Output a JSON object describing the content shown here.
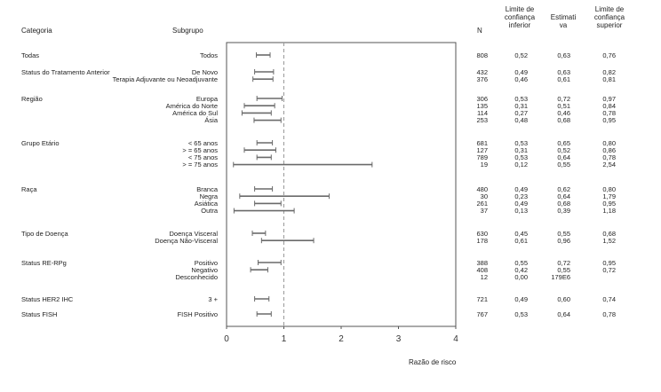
{
  "headers": {
    "categoria": "Categoria",
    "subgrupo": "Subgrupo",
    "n": "N",
    "lower_line1": "Limite de",
    "lower_line2": "confiança",
    "lower_line3": "inferior",
    "est_line1": "Estimati",
    "est_line2": "va",
    "upper_line1": "Limite de",
    "upper_line2": "confiança",
    "upper_line3": "superior"
  },
  "chart_data": {
    "type": "forest",
    "xlabel": "Razão de risco",
    "xlim": [
      0,
      4
    ],
    "xticks": [
      "0",
      "1",
      "2",
      "3",
      "4"
    ],
    "reference_line": 1,
    "groups": [
      {
        "category": "Todas",
        "rows": [
          {
            "subgroup": "Todos",
            "n": "808",
            "lower": "0,52",
            "estimate": "0,63",
            "upper": "0,76",
            "lo": 0.52,
            "hi": 0.76
          }
        ]
      },
      {
        "category": "Status do Tratamento Anterior",
        "rows": [
          {
            "subgroup": "De Novo",
            "n": "432",
            "lower": "0,49",
            "estimate": "0,63",
            "upper": "0,82",
            "lo": 0.49,
            "hi": 0.82
          },
          {
            "subgroup": "Terapia Adjuvante ou Neoadjuvante",
            "n": "376",
            "lower": "0,46",
            "estimate": "0,61",
            "upper": "0,81",
            "lo": 0.46,
            "hi": 0.81
          }
        ]
      },
      {
        "category": "Região",
        "rows": [
          {
            "subgroup": "Europa",
            "n": "306",
            "lower": "0,53",
            "estimate": "0,72",
            "upper": "0,97",
            "lo": 0.53,
            "hi": 0.97
          },
          {
            "subgroup": "América do Norte",
            "n": "135",
            "lower": "0,31",
            "estimate": "0,51",
            "upper": "0,84",
            "lo": 0.31,
            "hi": 0.84
          },
          {
            "subgroup": "América do Sul",
            "n": "114",
            "lower": "0,27",
            "estimate": "0,46",
            "upper": "0,78",
            "lo": 0.27,
            "hi": 0.78
          },
          {
            "subgroup": "Ásia",
            "n": "253",
            "lower": "0,48",
            "estimate": "0,68",
            "upper": "0,95",
            "lo": 0.48,
            "hi": 0.95
          }
        ]
      },
      {
        "category": "Grupo Etário",
        "rows": [
          {
            "subgroup": "< 65 anos",
            "n": "681",
            "lower": "0,53",
            "estimate": "0,65",
            "upper": "0,80",
            "lo": 0.53,
            "hi": 0.8
          },
          {
            "subgroup": "> = 65 anos",
            "n": "127",
            "lower": "0,31",
            "estimate": "0,52",
            "upper": "0,86",
            "lo": 0.31,
            "hi": 0.86
          },
          {
            "subgroup": "< 75 anos",
            "n": "789",
            "lower": "0,53",
            "estimate": "0,64",
            "upper": "0,78",
            "lo": 0.53,
            "hi": 0.78
          },
          {
            "subgroup": "> = 75 anos",
            "n": "19",
            "lower": "0,12",
            "estimate": "0,55",
            "upper": "2,54",
            "lo": 0.12,
            "hi": 2.54
          }
        ]
      },
      {
        "category": "Raça",
        "rows": [
          {
            "subgroup": "Branca",
            "n": "480",
            "lower": "0,49",
            "estimate": "0,62",
            "upper": "0,80",
            "lo": 0.49,
            "hi": 0.8
          },
          {
            "subgroup": "Negra",
            "n": "30",
            "lower": "0,23",
            "estimate": "0,64",
            "upper": "1,79",
            "lo": 0.23,
            "hi": 1.79
          },
          {
            "subgroup": "Asiática",
            "n": "261",
            "lower": "0,49",
            "estimate": "0,68",
            "upper": "0,95",
            "lo": 0.49,
            "hi": 0.95
          },
          {
            "subgroup": "Outra",
            "n": "37",
            "lower": "0,13",
            "estimate": "0,39",
            "upper": "1,18",
            "lo": 0.13,
            "hi": 1.18
          }
        ]
      },
      {
        "category": "Tipo de Doença",
        "rows": [
          {
            "subgroup": "Doença Visceral",
            "n": "630",
            "lower": "0,45",
            "estimate": "0,55",
            "upper": "0,68",
            "lo": 0.45,
            "hi": 0.68
          },
          {
            "subgroup": "Doença Não-Visceral",
            "n": "178",
            "lower": "0,61",
            "estimate": "0,96",
            "upper": "1,52",
            "lo": 0.61,
            "hi": 1.52
          }
        ]
      },
      {
        "category": "Status RE-RPg",
        "rows": [
          {
            "subgroup": "Positivo",
            "n": "388",
            "lower": "0,55",
            "estimate": "0,72",
            "upper": "0,95",
            "lo": 0.55,
            "hi": 0.95
          },
          {
            "subgroup": "Negativo",
            "n": "408",
            "lower": "0,42",
            "estimate": "0,55",
            "upper": "0,72",
            "lo": 0.42,
            "hi": 0.72
          },
          {
            "subgroup": "Desconhecido",
            "n": "12",
            "lower": "0,00",
            "estimate": "179E6",
            "upper": "",
            "lo": null,
            "hi": null
          }
        ]
      },
      {
        "category": "Status HER2 IHC",
        "rows": [
          {
            "subgroup": "3 +",
            "n": "721",
            "lower": "0,49",
            "estimate": "0,60",
            "upper": "0,74",
            "lo": 0.49,
            "hi": 0.74
          }
        ]
      },
      {
        "category": "Status FISH",
        "rows": [
          {
            "subgroup": "FISH Positivo",
            "n": "767",
            "lower": "0,53",
            "estimate": "0,64",
            "upper": "0,78",
            "lo": 0.53,
            "hi": 0.78
          }
        ]
      }
    ]
  },
  "colors": {
    "ci_line": "#6a6a6a",
    "frame": "#555555",
    "ref_line": "#999999",
    "text": "#222222"
  }
}
